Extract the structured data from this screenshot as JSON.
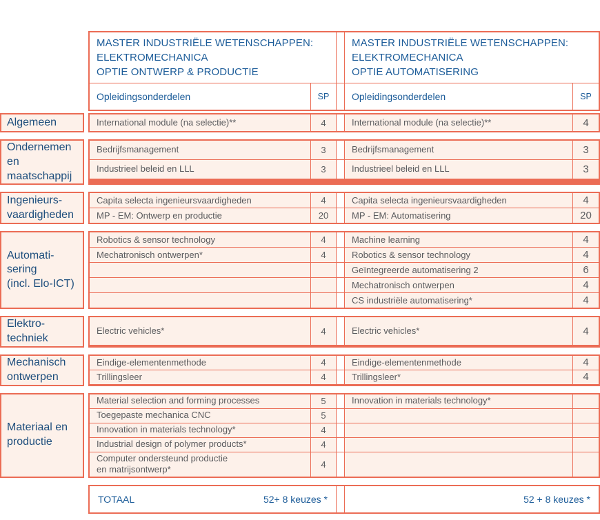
{
  "colors": {
    "border": "#eb6c55",
    "row_bg": "#fdf1ea",
    "header_blue": "#1c5c99",
    "label_navy": "#1e4e7d",
    "text_gray": "#5a5b5e"
  },
  "header": {
    "left": {
      "title": "MASTER INDUSTRIËLE WETENSCHAPPEN:\nELEKTROMECHANICA\nOPTIE ONTWERP & PRODUCTIE",
      "columns_label": "Opleidingsonderdelen",
      "sp_label": "SP"
    },
    "right": {
      "title": "MASTER INDUSTRIËLE WETENSCHAPPEN:\nELEKTROMECHANICA\nOPTIE AUTOMATISERING",
      "columns_label": "Opleidingsonderdelen",
      "sp_label": "SP"
    }
  },
  "sections": [
    {
      "id": "algemeen",
      "label": "Algemeen",
      "rows": [
        {
          "l": "International module (na selectie)**",
          "lsp": "4",
          "r": "International module (na selectie)**",
          "rsp": "4"
        }
      ]
    },
    {
      "id": "ondernemen",
      "label": "Ondernemen\nen\nmaatschappij",
      "rows": [
        {
          "l": "Bedrijfsmanagement",
          "lsp": "3",
          "r": "Bedrijfsmanagement",
          "rsp": "3"
        },
        {
          "l": "Industrieel beleid en LLL",
          "lsp": "3",
          "r": "Industrieel beleid en LLL",
          "rsp": "3"
        }
      ]
    },
    {
      "id": "ingenieurs",
      "label": "Ingenieurs-\nvaardigheden",
      "rows": [
        {
          "l": "Capita selecta ingenieursvaardigheden",
          "lsp": "4",
          "r": "Capita selecta ingenieursvaardigheden",
          "rsp": "4"
        },
        {
          "l": "MP - EM: Ontwerp en productie",
          "lsp": "20",
          "r": "MP - EM: Automatisering",
          "rsp": "20"
        }
      ]
    },
    {
      "id": "automatisering",
      "label": "Automati-\nsering\n(incl. Elo-ICT)",
      "rows": [
        {
          "l": "Robotics & sensor technology",
          "lsp": "4",
          "r": "Machine learning",
          "rsp": "4"
        },
        {
          "l": "Mechatronisch ontwerpen*",
          "lsp": "4",
          "r": "Robotics & sensor technology",
          "rsp": "4"
        },
        {
          "l": "",
          "lsp": "",
          "r": "Geïntegreerde automatisering 2",
          "rsp": "6"
        },
        {
          "l": "",
          "lsp": "",
          "r": "Mechatronisch ontwerpen",
          "rsp": "4"
        },
        {
          "l": "",
          "lsp": "",
          "r": "CS industriële automatisering*",
          "rsp": "4"
        }
      ]
    },
    {
      "id": "elektrotechniek",
      "label": "Elektro-\ntechniek",
      "rows": [
        {
          "l": "Electric vehicles*",
          "lsp": "4",
          "r": "Electric vehicles*",
          "rsp": "4"
        }
      ]
    },
    {
      "id": "mechanisch",
      "label": "Mechanisch\nontwerpen",
      "rows": [
        {
          "l": "Eindige-elementenmethode",
          "lsp": "4",
          "r": "Eindige-elementenmethode",
          "rsp": "4"
        },
        {
          "l": "Trillingsleer",
          "lsp": "4",
          "r": "Trillingsleer*",
          "rsp": "4"
        }
      ]
    },
    {
      "id": "materiaal",
      "label": "Materiaal en\nproductie",
      "rows": [
        {
          "l": "Material selection and forming processes",
          "lsp": "5",
          "r": "Innovation in materials technology*",
          "rsp": ""
        },
        {
          "l": "Toegepaste mechanica CNC",
          "lsp": "5",
          "r": "",
          "rsp": ""
        },
        {
          "l": "Innovation in materials technology*",
          "lsp": "4",
          "r": "",
          "rsp": ""
        },
        {
          "l": "Industrial design of polymer products*",
          "lsp": "4",
          "r": "",
          "rsp": ""
        },
        {
          "l": "Computer ondersteund productie\nen matrijsontwerp*",
          "lsp": "4",
          "r": "",
          "rsp": ""
        }
      ]
    }
  ],
  "total": {
    "label": "TOTAAL",
    "left_value": "52+ 8 keuzes *",
    "right_value": "52 + 8 keuzes *"
  }
}
